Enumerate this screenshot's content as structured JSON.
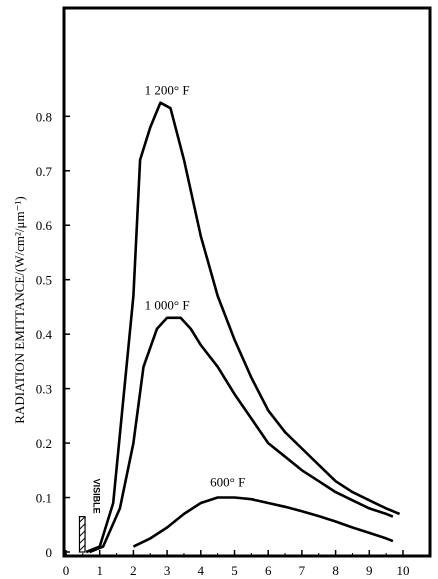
{
  "chart_data": {
    "type": "line",
    "title": "",
    "xlabel": "",
    "ylabel": "RADIATION EMITTANCE/(W/cm²/μm⁻¹)",
    "xlim": [
      0,
      10.8
    ],
    "ylim": [
      0,
      0.87
    ],
    "x_ticks": [
      "0",
      "1",
      "2",
      "3",
      "4",
      "5",
      "6",
      "7",
      "8",
      "9",
      "10"
    ],
    "y_ticks": [
      "0",
      "0.1",
      "0.2",
      "0.3",
      "0.4",
      "0.5",
      "0.6",
      "0.7",
      "0.8"
    ],
    "grid": false,
    "series": [
      {
        "name": "1 200° F",
        "points": [
          [
            0.6,
            0.0
          ],
          [
            1.0,
            0.01
          ],
          [
            1.4,
            0.09
          ],
          [
            2.0,
            0.47
          ],
          [
            2.2,
            0.72
          ],
          [
            2.5,
            0.78
          ],
          [
            2.8,
            0.825
          ],
          [
            3.1,
            0.815
          ],
          [
            3.5,
            0.72
          ],
          [
            4.0,
            0.58
          ],
          [
            4.5,
            0.47
          ],
          [
            5.0,
            0.39
          ],
          [
            5.5,
            0.32
          ],
          [
            6.0,
            0.26
          ],
          [
            6.5,
            0.22
          ],
          [
            7.0,
            0.19
          ],
          [
            7.5,
            0.16
          ],
          [
            8.0,
            0.13
          ],
          [
            8.5,
            0.11
          ],
          [
            9.0,
            0.095
          ],
          [
            9.5,
            0.08
          ],
          [
            9.9,
            0.07
          ]
        ]
      },
      {
        "name": "1 000° F",
        "points": [
          [
            0.7,
            0.0
          ],
          [
            1.1,
            0.01
          ],
          [
            1.6,
            0.08
          ],
          [
            2.0,
            0.2
          ],
          [
            2.3,
            0.34
          ],
          [
            2.7,
            0.41
          ],
          [
            3.0,
            0.43
          ],
          [
            3.4,
            0.43
          ],
          [
            3.7,
            0.41
          ],
          [
            4.0,
            0.38
          ],
          [
            4.5,
            0.34
          ],
          [
            5.0,
            0.29
          ],
          [
            5.5,
            0.245
          ],
          [
            6.0,
            0.2
          ],
          [
            6.5,
            0.175
          ],
          [
            7.0,
            0.15
          ],
          [
            7.5,
            0.13
          ],
          [
            8.0,
            0.11
          ],
          [
            8.5,
            0.095
          ],
          [
            9.0,
            0.08
          ],
          [
            9.5,
            0.07
          ],
          [
            9.7,
            0.065
          ]
        ]
      },
      {
        "name": "600° F",
        "points": [
          [
            2.0,
            0.01
          ],
          [
            2.5,
            0.025
          ],
          [
            3.0,
            0.045
          ],
          [
            3.5,
            0.07
          ],
          [
            4.0,
            0.09
          ],
          [
            4.5,
            0.1
          ],
          [
            5.0,
            0.1
          ],
          [
            5.5,
            0.097
          ],
          [
            6.0,
            0.09
          ],
          [
            6.5,
            0.083
          ],
          [
            7.0,
            0.075
          ],
          [
            7.5,
            0.066
          ],
          [
            8.0,
            0.056
          ],
          [
            8.5,
            0.045
          ],
          [
            9.0,
            0.035
          ],
          [
            9.5,
            0.025
          ],
          [
            9.7,
            0.02
          ]
        ]
      }
    ],
    "annotations": [
      {
        "text": "1 200° F",
        "x": 3.0,
        "y": 0.84
      },
      {
        "text": "1 000° F",
        "x": 3.0,
        "y": 0.445
      },
      {
        "text": "600° F",
        "x": 4.8,
        "y": 0.12
      },
      {
        "text": "VISIBLE",
        "x": 0.55,
        "y": 0.065,
        "range": [
          0.4,
          0.7
        ]
      }
    ]
  }
}
